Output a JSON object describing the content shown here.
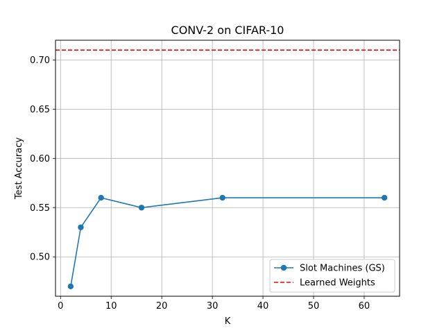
{
  "chart_data": {
    "type": "line",
    "title": "CONV-2 on CIFAR-10",
    "xlabel": "K",
    "ylabel": "Test Accuracy",
    "xlim": [
      -1,
      67
    ],
    "ylim": [
      0.46,
      0.72
    ],
    "xticks": [
      0,
      10,
      20,
      30,
      40,
      50,
      60
    ],
    "yticks": [
      0.5,
      0.55,
      0.6,
      0.65,
      0.7
    ],
    "xtick_labels": [
      "0",
      "10",
      "20",
      "30",
      "40",
      "50",
      "60"
    ],
    "ytick_labels": [
      "0.50",
      "0.55",
      "0.60",
      "0.65",
      "0.70"
    ],
    "grid": true,
    "legend_position": "lower-right",
    "series": [
      {
        "name": "Slot Machines (GS)",
        "style": "solid-line-circle-markers",
        "color": "#1f77b4",
        "x": [
          2,
          4,
          8,
          16,
          32,
          64
        ],
        "y": [
          0.47,
          0.53,
          0.56,
          0.55,
          0.56,
          0.56
        ]
      }
    ],
    "hlines": [
      {
        "name": "Learned Weights",
        "style": "dashed",
        "color": "#ff0000",
        "y": 0.71
      }
    ]
  }
}
